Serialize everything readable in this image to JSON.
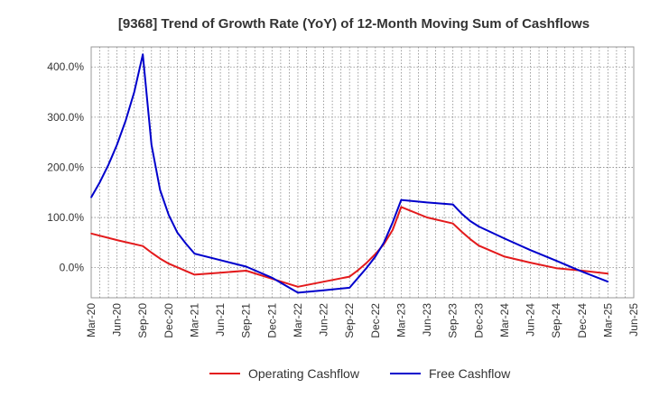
{
  "chart_data": {
    "type": "line",
    "title": "[9368]  Trend of Growth Rate (YoY) of 12-Month Moving Sum of Cashflows",
    "xlabel": "",
    "ylabel": "",
    "x_ticks": [
      "Mar-20",
      "Jun-20",
      "Sep-20",
      "Dec-20",
      "Mar-21",
      "Jun-21",
      "Sep-21",
      "Dec-21",
      "Mar-22",
      "Jun-22",
      "Sep-22",
      "Dec-22",
      "Mar-23",
      "Jun-23",
      "Sep-23",
      "Dec-23",
      "Mar-24",
      "Jun-24",
      "Sep-24",
      "Dec-24",
      "Mar-25",
      "Jun-25"
    ],
    "y_ticks": [
      "0.0%",
      "100.0%",
      "200.0%",
      "300.0%",
      "400.0%"
    ],
    "y_tick_values": [
      0,
      100,
      200,
      300,
      400
    ],
    "ylim": [
      -60,
      440
    ],
    "grid": true,
    "legend_position": "bottom",
    "series": [
      {
        "name": "Operating Cashflow",
        "color": "#e31a1c",
        "points": [
          [
            "Mar-20",
            68
          ],
          [
            "Jun-20",
            55
          ],
          [
            "Sep-20",
            43
          ],
          [
            "Oct-20",
            30
          ],
          [
            "Nov-20",
            18
          ],
          [
            "Dec-20",
            8
          ],
          [
            "Mar-21",
            -14
          ],
          [
            "Jun-21",
            -10
          ],
          [
            "Sep-21",
            -6
          ],
          [
            "Dec-21",
            -22
          ],
          [
            "Mar-22",
            -38
          ],
          [
            "Jun-22",
            -28
          ],
          [
            "Sep-22",
            -18
          ],
          [
            "Oct-22",
            -5
          ],
          [
            "Nov-22",
            10
          ],
          [
            "Dec-22",
            27
          ],
          [
            "Jan-23",
            47
          ],
          [
            "Feb-23",
            75
          ],
          [
            "Mar-23",
            121
          ],
          [
            "Jun-23",
            100
          ],
          [
            "Sep-23",
            88
          ],
          [
            "Oct-23",
            72
          ],
          [
            "Nov-23",
            57
          ],
          [
            "Dec-23",
            44
          ],
          [
            "Mar-24",
            22
          ],
          [
            "Jun-24",
            10
          ],
          [
            "Sep-24",
            -1
          ],
          [
            "Dec-24",
            -6
          ],
          [
            "Mar-25",
            -12
          ]
        ]
      },
      {
        "name": "Free Cashflow",
        "color": "#0000cc",
        "points": [
          [
            "Mar-20",
            140
          ],
          [
            "Apr-20",
            170
          ],
          [
            "May-20",
            205
          ],
          [
            "Jun-20",
            245
          ],
          [
            "Jul-20",
            293
          ],
          [
            "Aug-20",
            350
          ],
          [
            "Sep-20",
            425
          ],
          [
            "Oct-20",
            245
          ],
          [
            "Nov-20",
            155
          ],
          [
            "Dec-20",
            105
          ],
          [
            "Jan-21",
            70
          ],
          [
            "Feb-21",
            48
          ],
          [
            "Mar-21",
            28
          ],
          [
            "Jun-21",
            15
          ],
          [
            "Sep-21",
            2
          ],
          [
            "Dec-21",
            -20
          ],
          [
            "Mar-22",
            -50
          ],
          [
            "Jun-22",
            -45
          ],
          [
            "Sep-22",
            -40
          ],
          [
            "Oct-22",
            -20
          ],
          [
            "Nov-22",
            0
          ],
          [
            "Dec-22",
            22
          ],
          [
            "Jan-23",
            50
          ],
          [
            "Feb-23",
            90
          ],
          [
            "Mar-23",
            135
          ],
          [
            "Jun-23",
            130
          ],
          [
            "Sep-23",
            126
          ],
          [
            "Oct-23",
            108
          ],
          [
            "Nov-23",
            93
          ],
          [
            "Dec-23",
            82
          ],
          [
            "Mar-24",
            58
          ],
          [
            "Jun-24",
            35
          ],
          [
            "Sep-24",
            14
          ],
          [
            "Dec-24",
            -8
          ],
          [
            "Mar-25",
            -28
          ]
        ]
      }
    ]
  }
}
